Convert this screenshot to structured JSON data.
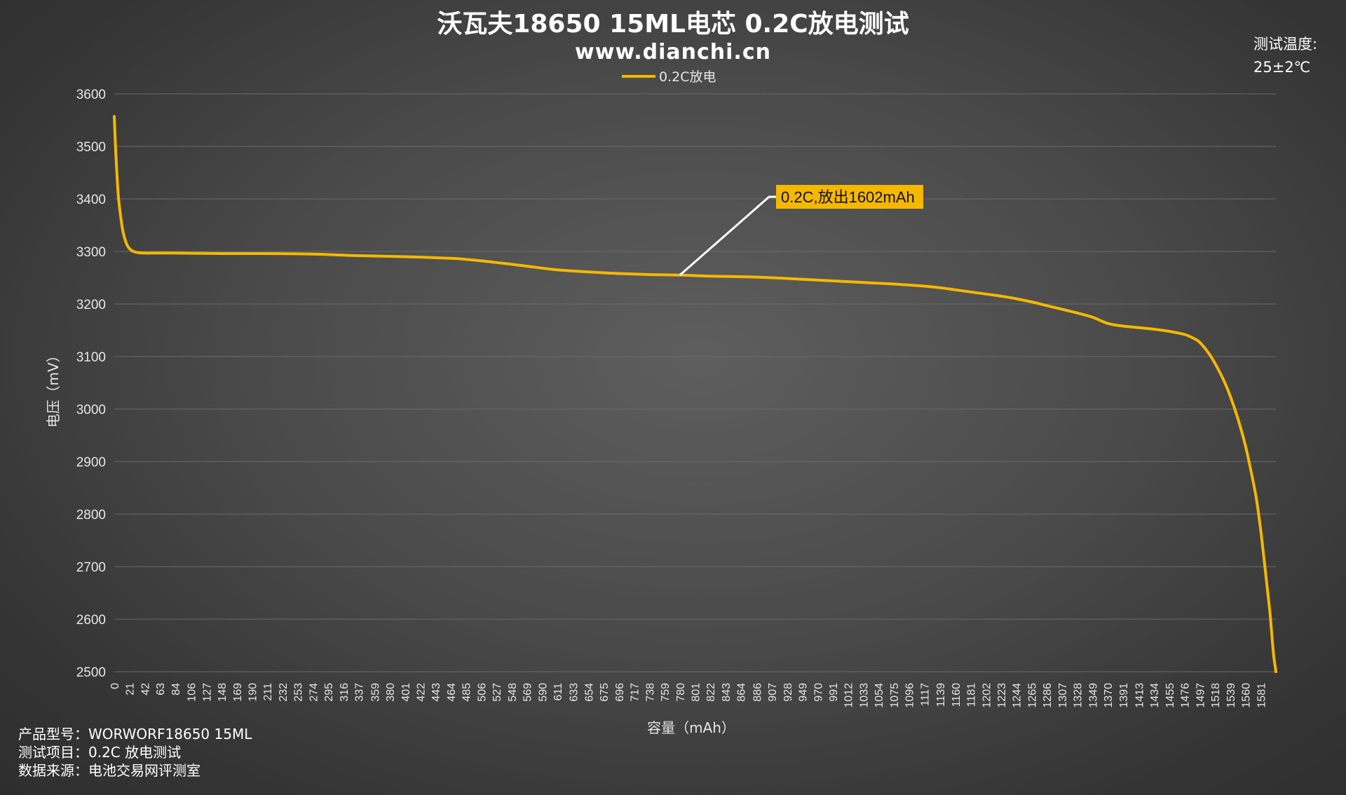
{
  "title": "沃瓦夫18650 15ML电芯 0.2C放电测试",
  "subtitle": "www.dianchi.cn",
  "temperature": {
    "label": "测试温度:",
    "value": "25±2℃"
  },
  "info": [
    "产品型号：WORWORF18650 15ML",
    "测试项目：0.2C 放电测试",
    "数据来源：电池交易网评测室"
  ],
  "annotation": {
    "text": "0.2C,放出1602mAh",
    "x": 780,
    "y": 3255
  },
  "colors": {
    "series": "#f5b800",
    "callout_bg": "#f5b800",
    "leader": "#ffffff"
  },
  "chart_data": {
    "type": "line",
    "xlabel": "容量（mAh）",
    "ylabel": "电压（mV）",
    "ylim": [
      2500,
      3600
    ],
    "xlim": [
      0,
      1602
    ],
    "yticks": [
      2500,
      2600,
      2700,
      2800,
      2900,
      3000,
      3100,
      3200,
      3300,
      3400,
      3500,
      3600
    ],
    "xticks": [
      0,
      21,
      42,
      63,
      84,
      106,
      127,
      148,
      169,
      190,
      211,
      232,
      253,
      274,
      295,
      316,
      337,
      359,
      380,
      401,
      422,
      443,
      464,
      485,
      506,
      527,
      548,
      569,
      590,
      611,
      633,
      654,
      675,
      696,
      717,
      738,
      759,
      780,
      801,
      822,
      843,
      864,
      886,
      907,
      928,
      949,
      970,
      991,
      1012,
      1033,
      1054,
      1075,
      1096,
      1117,
      1139,
      1160,
      1181,
      1202,
      1223,
      1244,
      1265,
      1286,
      1307,
      1328,
      1349,
      1370,
      1391,
      1413,
      1434,
      1455,
      1476,
      1497,
      1518,
      1539,
      1560,
      1581
    ],
    "grid": true,
    "legend": "top-center",
    "series": [
      {
        "name": "0.2C放电",
        "x": [
          0,
          2,
          4,
          6,
          9,
          12,
          16,
          20,
          25,
          32,
          42,
          84,
          148,
          211,
          274,
          337,
          401,
          464,
          485,
          527,
          569,
          611,
          654,
          696,
          738,
          780,
          822,
          864,
          907,
          949,
          991,
          1033,
          1075,
          1117,
          1139,
          1160,
          1181,
          1202,
          1223,
          1244,
          1265,
          1286,
          1307,
          1328,
          1349,
          1370,
          1391,
          1413,
          1434,
          1455,
          1476,
          1488,
          1497,
          1510,
          1520,
          1530,
          1539,
          1550,
          1560,
          1568,
          1575,
          1581,
          1586,
          1590,
          1594,
          1597,
          1599,
          1601,
          1602
        ],
        "y": [
          3557,
          3490,
          3440,
          3400,
          3365,
          3338,
          3318,
          3307,
          3301,
          3298,
          3297,
          3297,
          3296,
          3296,
          3295,
          3292,
          3290,
          3287,
          3285,
          3279,
          3272,
          3265,
          3261,
          3258,
          3256,
          3255,
          3253,
          3252,
          3250,
          3247,
          3244,
          3241,
          3238,
          3234,
          3231,
          3227,
          3223,
          3219,
          3215,
          3210,
          3204,
          3197,
          3190,
          3183,
          3175,
          3163,
          3158,
          3155,
          3152,
          3148,
          3142,
          3135,
          3127,
          3105,
          3082,
          3055,
          3025,
          2980,
          2930,
          2880,
          2830,
          2770,
          2710,
          2660,
          2610,
          2560,
          2530,
          2510,
          2500
        ]
      }
    ]
  }
}
